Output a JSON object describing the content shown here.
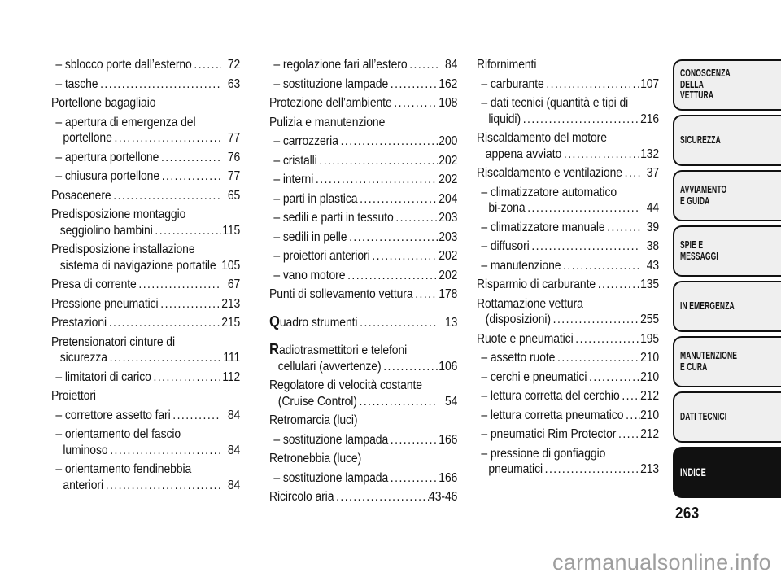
{
  "page": {
    "number": "263",
    "watermark": "carmanualsonline.info"
  },
  "colors": {
    "text": "#141414",
    "tab_fill": "#efefef",
    "tab_border": "#111111",
    "active_tab_fill": "#111111",
    "active_tab_text": "#ffffff",
    "watermark_text": "#9e9e9e"
  },
  "index": {
    "columns": [
      {
        "lines": [
          {
            "t": "– sblocco porte dall’esterno",
            "p": "72",
            "i": 1
          },
          {
            "t": "– tasche",
            "p": "63",
            "i": 1
          },
          {
            "t": "Portellone bagagliaio",
            "i": 0
          },
          {
            "t": "– apertura di emergenza del",
            "i": 1
          },
          {
            "t": "portellone",
            "p": "77",
            "i": 3
          },
          {
            "t": "– apertura portellone",
            "p": "76",
            "i": 1
          },
          {
            "t": "– chiusura portellone",
            "p": "77",
            "i": 1
          },
          {
            "t": "Posacenere",
            "p": "65",
            "i": 0
          },
          {
            "t": "Predisposizione montaggio",
            "i": 0
          },
          {
            "t": "seggiolino bambini",
            "p": "115",
            "i": 2
          },
          {
            "t": "Predisposizione installazione",
            "i": 0
          },
          {
            "t": "sistema di navigazione portatile",
            "p": "105",
            "i": 2,
            "d": false
          },
          {
            "t": "Presa di corrente",
            "p": "67",
            "i": 0
          },
          {
            "t": "Pressione pneumatici",
            "p": "213",
            "i": 0
          },
          {
            "t": "Prestazioni",
            "p": "215",
            "i": 0
          },
          {
            "t": "Pretensionatori cinture di",
            "i": 0
          },
          {
            "t": "sicurezza",
            "p": "111",
            "i": 2
          },
          {
            "t": "– limitatori di carico",
            "p": "112",
            "i": 1
          },
          {
            "t": "Proiettori",
            "i": 0
          },
          {
            "t": "– correttore assetto fari",
            "p": "84",
            "i": 1
          },
          {
            "t": "– orientamento del fascio",
            "i": 1
          },
          {
            "t": "luminoso",
            "p": "84",
            "i": 3
          },
          {
            "t": "– orientamento fendinebbia",
            "i": 1
          },
          {
            "t": "anteriori",
            "p": "84",
            "i": 3
          }
        ]
      },
      {
        "lines": [
          {
            "t": "– regolazione fari all’estero",
            "p": "84",
            "i": 1
          },
          {
            "t": "– sostituzione lampade",
            "p": "162",
            "i": 1
          },
          {
            "t": "Protezione dell’ambiente",
            "p": "108",
            "i": 0
          },
          {
            "t": "Pulizia e manutenzione",
            "i": 0
          },
          {
            "t": "– carrozzeria",
            "p": "200",
            "i": 1
          },
          {
            "t": "– cristalli",
            "p": "202",
            "i": 1
          },
          {
            "t": "– interni",
            "p": "202",
            "i": 1
          },
          {
            "t": "– parti in plastica",
            "p": "204",
            "i": 1
          },
          {
            "t": "– sedili e parti in tessuto",
            "p": "203",
            "i": 1
          },
          {
            "t": "– sedili in pelle",
            "p": "203",
            "i": 1
          },
          {
            "t": "– proiettori anteriori",
            "p": "202",
            "i": 1
          },
          {
            "t": "– vano motore",
            "p": "202",
            "i": 1
          },
          {
            "t": "Punti di sollevamento  vettura",
            "p": "178",
            "i": 0
          },
          {
            "t": "Quadro strumenti",
            "p": "13",
            "i": 0,
            "b": true,
            "g": true
          },
          {
            "t": "Radiotrasmettitori e telefoni",
            "i": 0,
            "b": true,
            "g": true
          },
          {
            "t": "cellulari (avvertenze)",
            "p": "106",
            "i": 2
          },
          {
            "t": "Regolatore di velocità costante",
            "i": 0
          },
          {
            "t": "(Cruise Control)",
            "p": "54",
            "i": 2
          },
          {
            "t": "Retromarcia (luci)",
            "i": 0
          },
          {
            "t": "– sostituzione lampada",
            "p": "166",
            "i": 1
          },
          {
            "t": "Retronebbia (luce)",
            "i": 0
          },
          {
            "t": "– sostituzione lampada",
            "p": "166",
            "i": 1
          },
          {
            "t": "Ricircolo aria",
            "p": "43-46",
            "i": 0
          }
        ]
      },
      {
        "lines": [
          {
            "t": "Rifornimenti",
            "i": 0
          },
          {
            "t": "– carburante",
            "p": "107",
            "i": 1
          },
          {
            "t": "– dati tecnici (quantità e tipi di",
            "i": 1
          },
          {
            "t": "liquidi)",
            "p": "216",
            "i": 3
          },
          {
            "t": "Riscaldamento del motore",
            "i": 0
          },
          {
            "t": "appena avviato",
            "p": "132",
            "i": 2
          },
          {
            "t": "Riscaldamento e ventilazione",
            "p": "37",
            "i": 0
          },
          {
            "t": "– climatizzatore automatico",
            "i": 1
          },
          {
            "t": "bi-zona",
            "p": "44",
            "i": 3
          },
          {
            "t": "– climatizzatore manuale",
            "p": "39",
            "i": 1
          },
          {
            "t": "– diffusori",
            "p": "38",
            "i": 1
          },
          {
            "t": "– manutenzione",
            "p": "43",
            "i": 1
          },
          {
            "t": "Risparmio di carburante",
            "p": "135",
            "i": 0
          },
          {
            "t": "Rottamazione vettura",
            "i": 0
          },
          {
            "t": "(disposizioni)",
            "p": "255",
            "i": 2
          },
          {
            "t": "Ruote e pneumatici",
            "p": "195",
            "i": 0
          },
          {
            "t": "– assetto ruote",
            "p": "210",
            "i": 1
          },
          {
            "t": "– cerchi e pneumatici",
            "p": "210",
            "i": 1
          },
          {
            "t": "– lettura corretta del cerchio",
            "p": "212",
            "i": 1
          },
          {
            "t": "– lettura corretta pneumatico",
            "p": "210",
            "i": 1
          },
          {
            "t": "– pneumatici Rim Protector",
            "p": "212",
            "i": 1
          },
          {
            "t": "– pressione di gonfiaggio",
            "i": 1
          },
          {
            "t": "pneumatici",
            "p": "213",
            "i": 3
          }
        ]
      }
    ]
  },
  "sidebar": {
    "tabs": [
      {
        "lines": [
          "CONOSCENZA",
          "DELLA",
          "VETTURA"
        ],
        "active": false
      },
      {
        "lines": [
          "SICUREZZA"
        ],
        "active": false
      },
      {
        "lines": [
          "AVVIAMENTO",
          "E GUIDA"
        ],
        "active": false
      },
      {
        "lines": [
          "SPIE E",
          "MESSAGGI"
        ],
        "active": false
      },
      {
        "lines": [
          "IN EMERGENZA"
        ],
        "active": false
      },
      {
        "lines": [
          "MANUTENZIONE",
          "E CURA"
        ],
        "active": false
      },
      {
        "lines": [
          "DATI TECNICI"
        ],
        "active": false
      },
      {
        "lines": [
          "INDICE"
        ],
        "active": true
      }
    ]
  }
}
